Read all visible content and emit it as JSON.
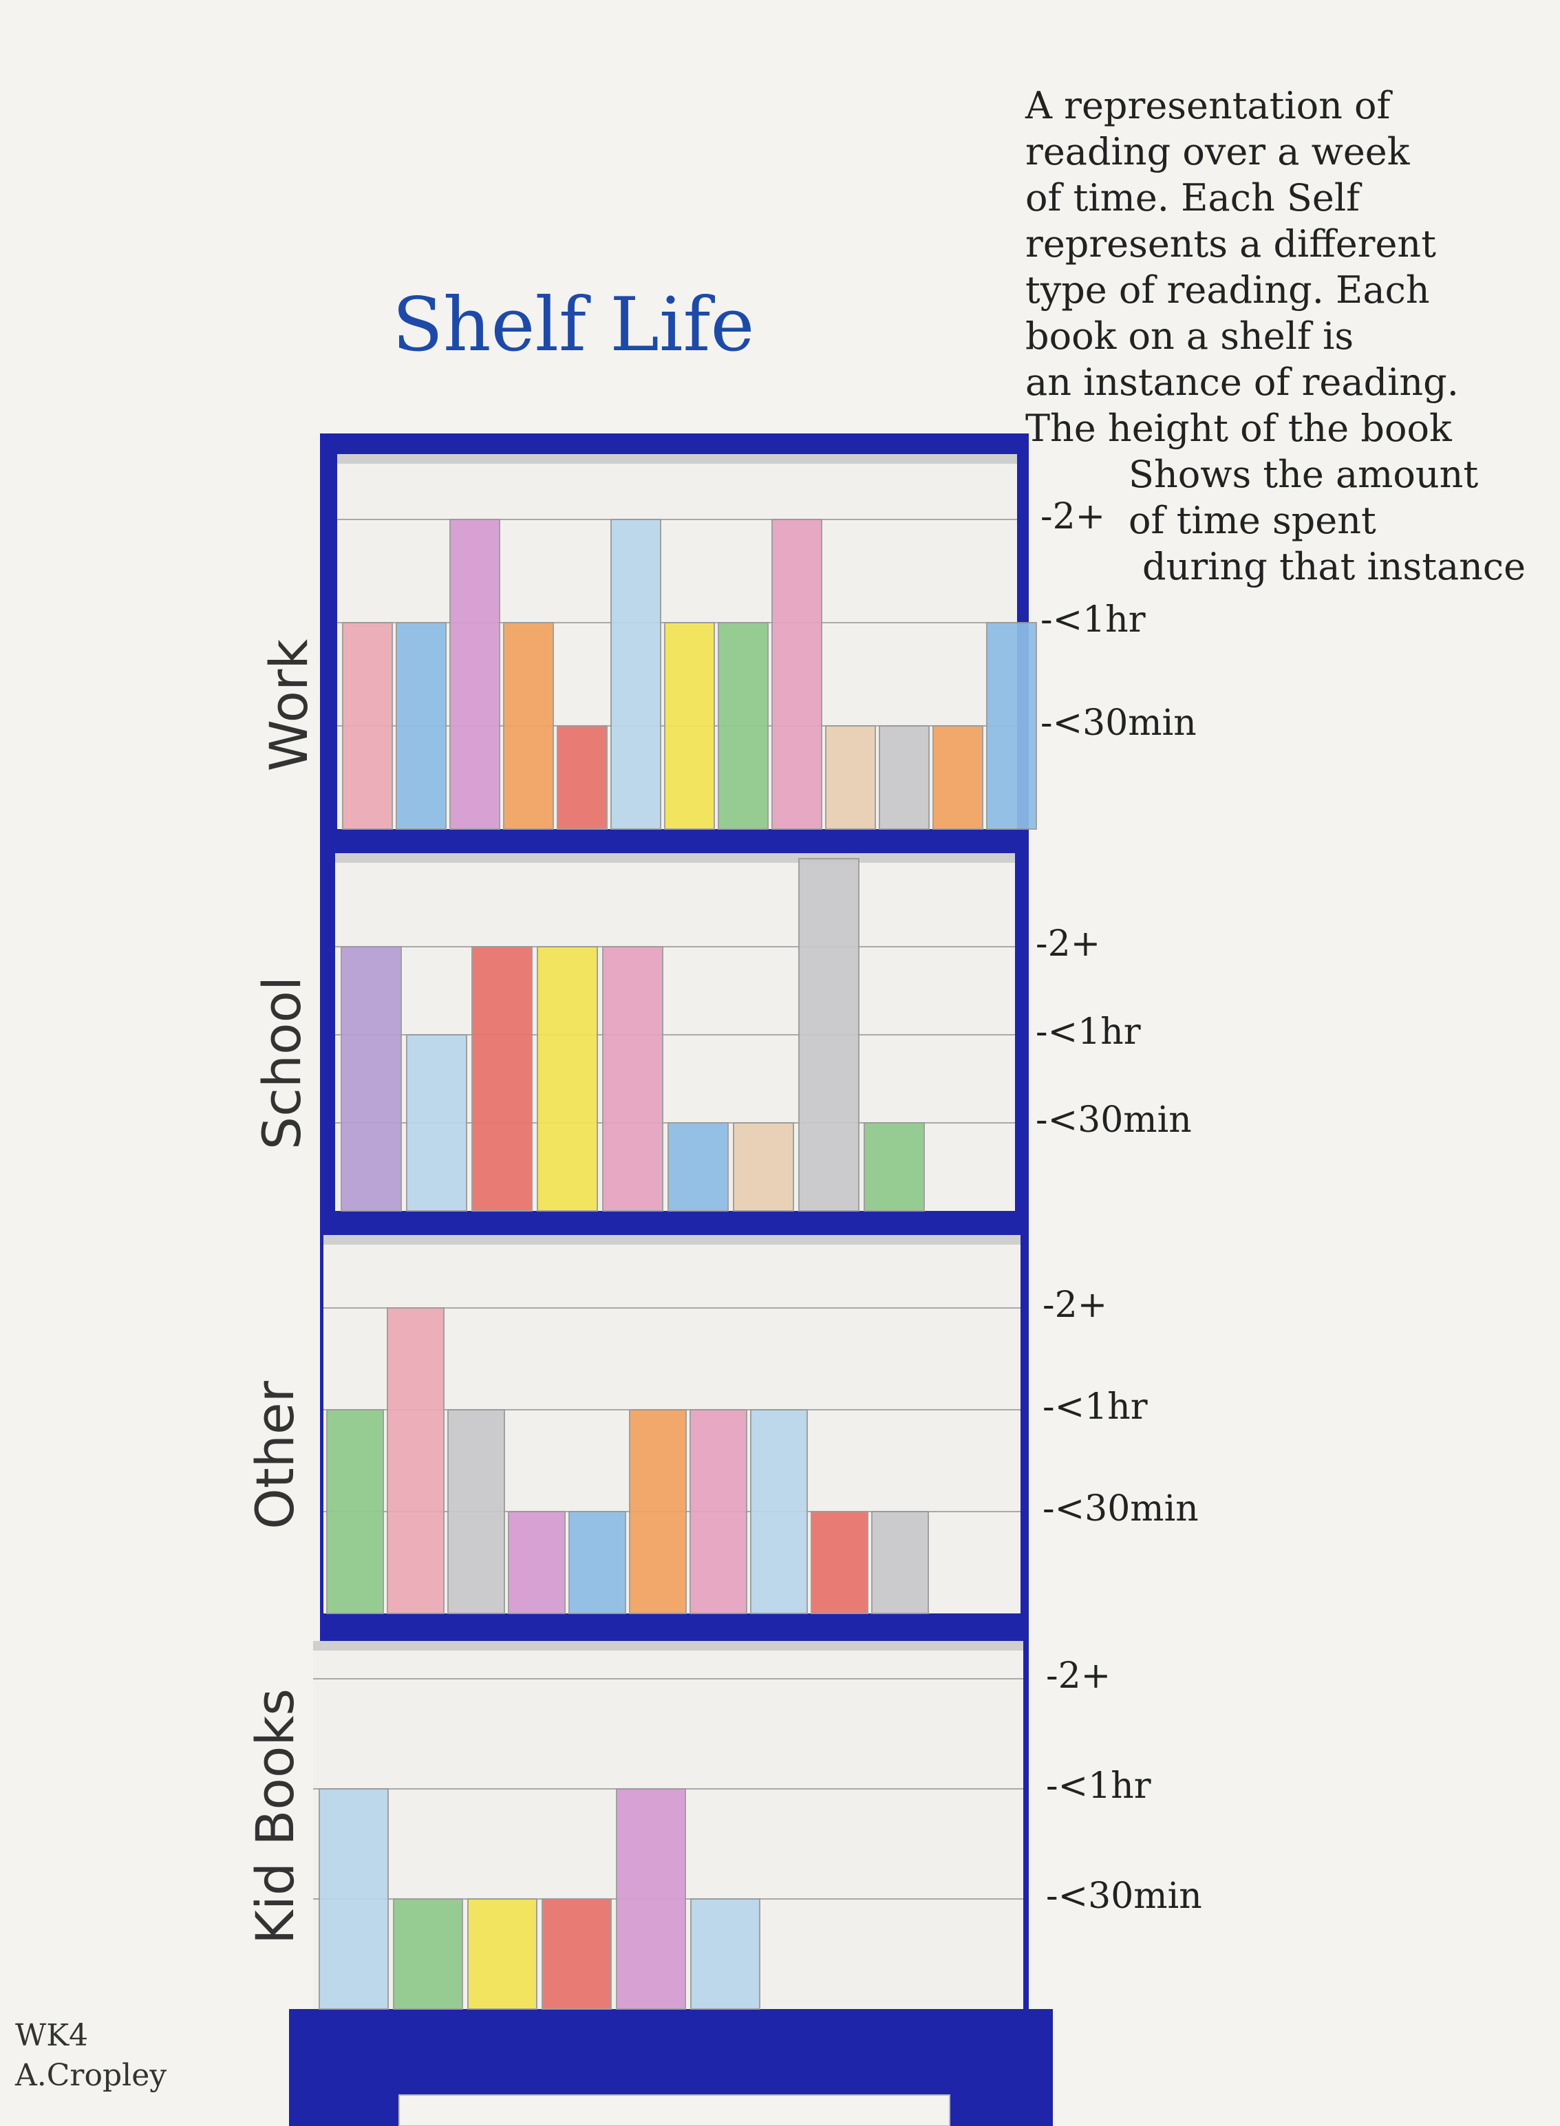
{
  "title": "Shelf Life",
  "description_lines": [
    "A representation of",
    "reading over a week",
    "of time. Each Self",
    "represents a different",
    "type of reading. Each",
    "book on a shelf is",
    "an instance of reading.",
    "The height of the book",
    "Shows the amount",
    "of time spent",
    "during that instance"
  ],
  "signature": {
    "week": "WK4",
    "author": "A.Cropley"
  },
  "colors": {
    "frame": "#1f25a8",
    "pink": "#ecaab5",
    "blue": "#8ebde6",
    "light_blue": "#b9d6ea",
    "magenta": "#d69bd3",
    "orange": "#f2a260",
    "red": "#e8736a",
    "yellow": "#f3e352",
    "green": "#8fc98a",
    "tan": "#e8cfb2",
    "gray": "#c8c8cc",
    "purple": "#b69ed4",
    "rose": "#e6a2c0"
  },
  "chart_data": [
    {
      "type": "bar",
      "shelf": "Work",
      "levels": [
        "<30min",
        "<1hr",
        "2+"
      ],
      "tick_labels": [
        "-<30min",
        "-<1hr",
        "-2+"
      ],
      "values": [
        2,
        2,
        3,
        2,
        1,
        3,
        2,
        2,
        3,
        1,
        1,
        1,
        2
      ],
      "book_colors": [
        "pink",
        "blue",
        "magenta",
        "orange",
        "red",
        "light_blue",
        "yellow",
        "green",
        "rose",
        "tan",
        "gray",
        "orange",
        "blue"
      ]
    },
    {
      "type": "bar",
      "shelf": "School",
      "levels": [
        "<30min",
        "<1hr",
        "2+"
      ],
      "tick_labels": [
        "-<30min",
        "-<1hr",
        "-2+"
      ],
      "values": [
        3,
        2,
        3,
        3,
        3,
        1,
        1,
        4,
        1
      ],
      "book_colors": [
        "purple",
        "light_blue",
        "red",
        "yellow",
        "rose",
        "blue",
        "tan",
        "gray",
        "green"
      ]
    },
    {
      "type": "bar",
      "shelf": "Other",
      "levels": [
        "<30min",
        "<1hr",
        "2+"
      ],
      "tick_labels": [
        "-<30min",
        "-<1hr",
        "-2+"
      ],
      "values": [
        2,
        3,
        2,
        1,
        1,
        2,
        2,
        2,
        1,
        1
      ],
      "book_colors": [
        "green",
        "pink",
        "gray",
        "magenta",
        "blue",
        "orange",
        "rose",
        "light_blue",
        "red",
        "gray"
      ]
    },
    {
      "type": "bar",
      "shelf": "Kid Books",
      "levels": [
        "<30min",
        "<1hr",
        "2+"
      ],
      "tick_labels": [
        "-<30min",
        "-<1hr",
        "-2+"
      ],
      "values": [
        2,
        1,
        1,
        1,
        2,
        1
      ],
      "book_colors": [
        "light_blue",
        "green",
        "yellow",
        "red",
        "magenta",
        "light_blue"
      ]
    }
  ]
}
